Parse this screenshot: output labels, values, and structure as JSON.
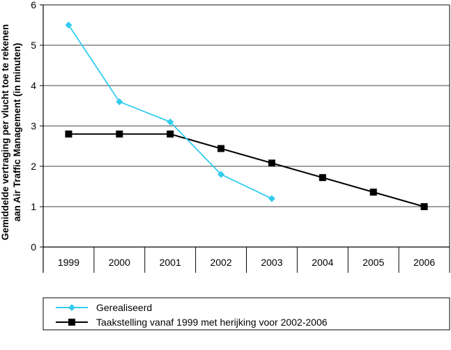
{
  "chart_data": {
    "type": "line",
    "title": "",
    "xlabel": "",
    "ylabel_lines": [
      "Gemiddelde vertraging per vlucht toe te rekenen",
      "aan Air Traffic Management (in minuten)"
    ],
    "categories": [
      "1999",
      "2000",
      "2001",
      "2002",
      "2003",
      "2004",
      "2005",
      "2006"
    ],
    "ylim": [
      0,
      6
    ],
    "yticks": [
      "0",
      "1",
      "2",
      "3",
      "4",
      "5",
      "6"
    ],
    "grid": true,
    "legend_position": "bottom",
    "series": [
      {
        "name": "Gerealiseerd",
        "color": "#33ccee",
        "marker": "diamond",
        "values": [
          5.5,
          3.6,
          3.1,
          1.8,
          1.2,
          null,
          null,
          null
        ]
      },
      {
        "name": "Taakstelling vanaf 1999 met herijking voor 2002-2006",
        "color": "#000000",
        "marker": "square",
        "values": [
          2.8,
          2.8,
          2.8,
          2.44,
          2.08,
          1.72,
          1.36,
          1.0
        ]
      }
    ]
  }
}
